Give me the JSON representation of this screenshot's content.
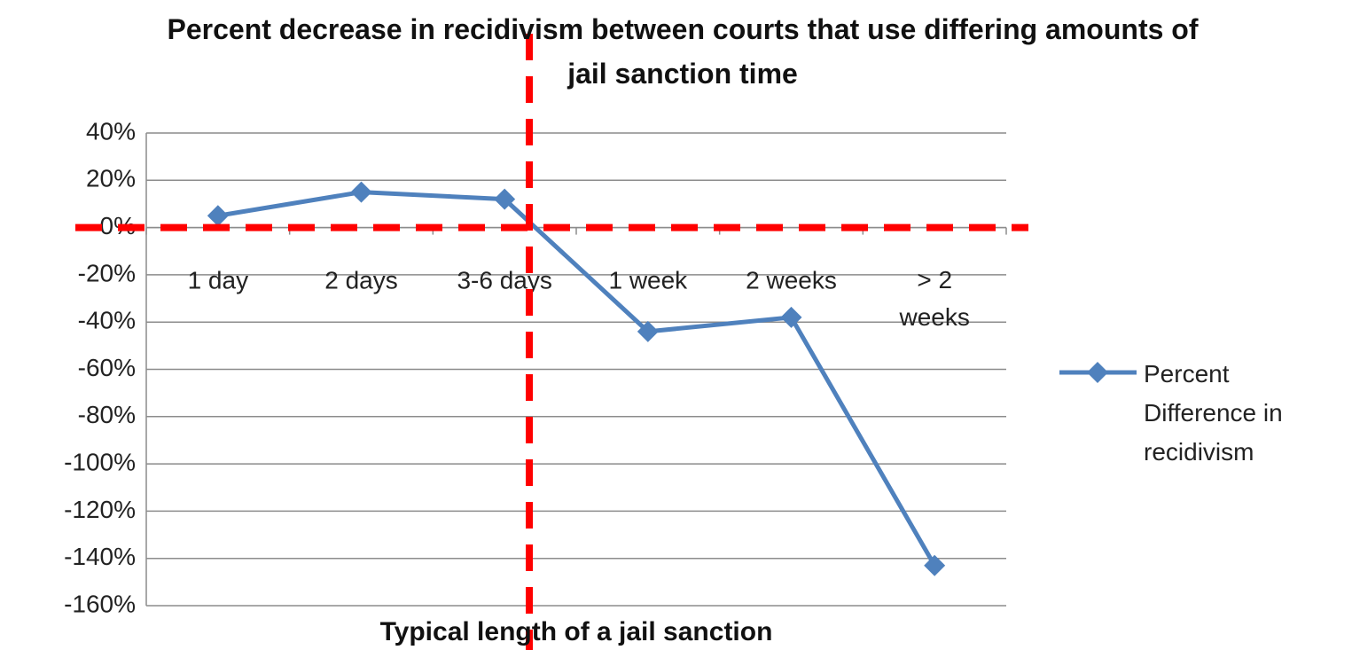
{
  "chart_data": {
    "type": "line",
    "title": "Percent decrease in recidivism between courts that use differing amounts of jail sanction time",
    "x_label": "Typical length of a jail sanction",
    "categories": [
      "1 day",
      "2 days",
      "3-6 days",
      "1 week",
      "2 weeks",
      "> 2 weeks"
    ],
    "series": [
      {
        "name": "Percent Difference in recidivism",
        "color": "#4f81bd",
        "values": [
          5,
          15,
          12,
          -44,
          -38,
          -143
        ]
      }
    ],
    "ylim": [
      -160,
      40
    ],
    "yticks": [
      {
        "value": -160,
        "label": "-160%"
      },
      {
        "value": -140,
        "label": "-140%"
      },
      {
        "value": -120,
        "label": "-120%"
      },
      {
        "value": -100,
        "label": "-100%"
      },
      {
        "value": -80,
        "label": "-80%"
      },
      {
        "value": -60,
        "label": "-60%"
      },
      {
        "value": -40,
        "label": "-40%"
      },
      {
        "value": -20,
        "label": "-20%"
      },
      {
        "value": 0,
        "label": "0%"
      },
      {
        "value": 20,
        "label": "20%"
      },
      {
        "value": 40,
        "label": "40%"
      }
    ],
    "grid": true,
    "legend": "right"
  }
}
